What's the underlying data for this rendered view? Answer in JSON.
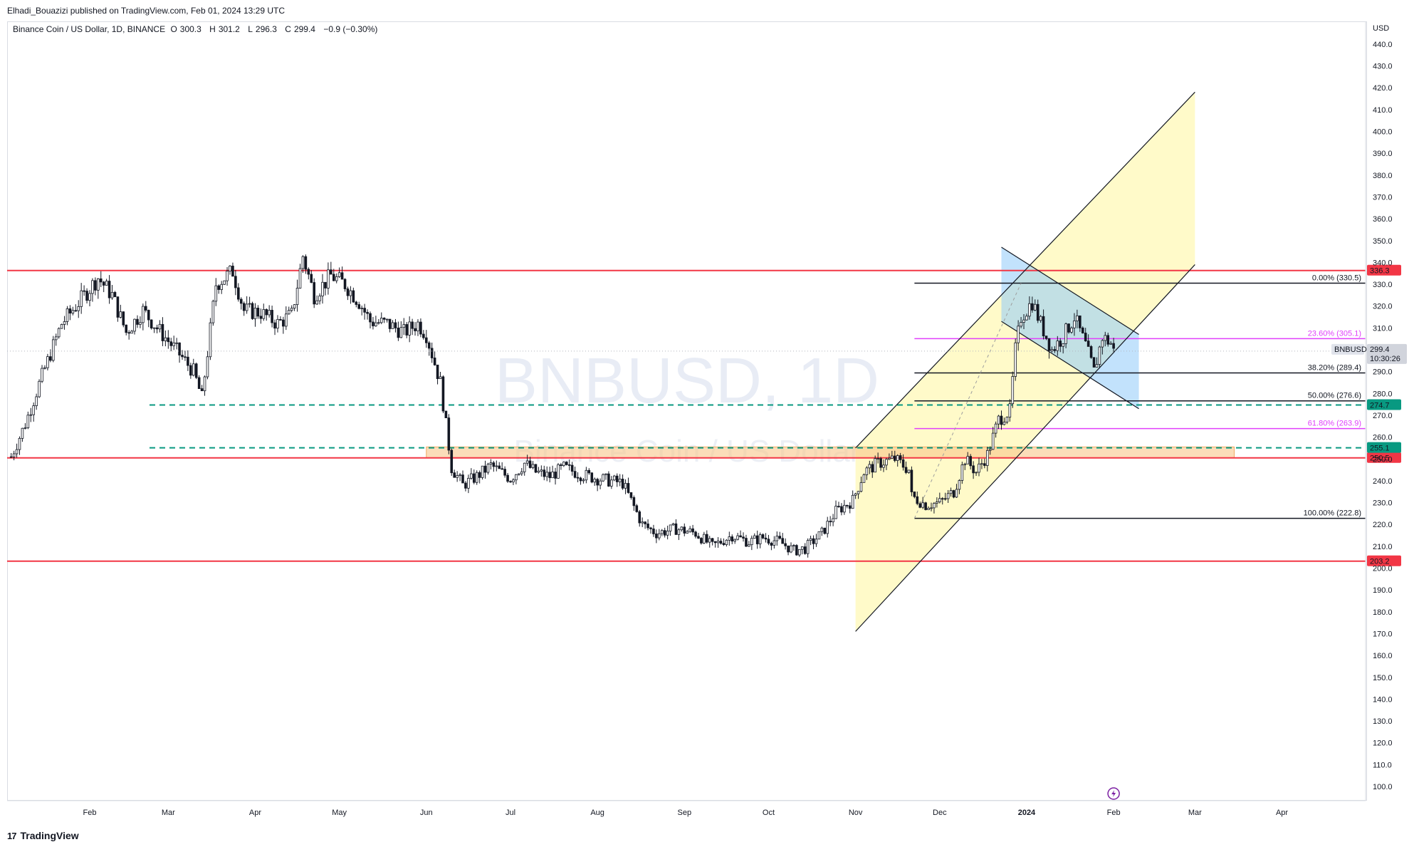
{
  "publisher": "Elhadi_Bouazizi published on TradingView.com, Feb 01, 2024 13:29 UTC",
  "legend": {
    "symbol": "Binance Coin / US Dollar, 1D, BINANCE",
    "o_label": "O",
    "o": "300.3",
    "h_label": "H",
    "h": "301.2",
    "l_label": "L",
    "l": "296.3",
    "c_label": "C",
    "c": "299.4",
    "change": "−0.9 (−0.30%)"
  },
  "currency": "USD",
  "watermark": {
    "ticker": "BNBUSD, 1D",
    "name": "Binance Coin / US Dollar"
  },
  "footer": {
    "brand": "TradingView",
    "logo_glyph": "17"
  },
  "last_price": {
    "symbol": "BNBUSD",
    "price": "299.4",
    "countdown": "10:30:26"
  },
  "chart_data": {
    "type": "candlestick",
    "ylim": [
      95,
      448
    ],
    "y_ticks": [
      "100.0",
      "110.0",
      "120.0",
      "130.0",
      "140.0",
      "150.0",
      "160.0",
      "170.0",
      "180.0",
      "190.0",
      "200.0",
      "210.0",
      "220.0",
      "230.0",
      "240.0",
      "250.0",
      "260.0",
      "270.0",
      "280.0",
      "290.0",
      "300.0",
      "310.0",
      "320.0",
      "330.0",
      "340.0",
      "350.0",
      "360.0",
      "370.0",
      "380.0",
      "390.0",
      "400.0",
      "410.0",
      "420.0",
      "430.0",
      "440.0"
    ],
    "x_ticks": [
      {
        "label": "Feb",
        "date": "2023-02-01"
      },
      {
        "label": "Mar",
        "date": "2023-03-01"
      },
      {
        "label": "Apr",
        "date": "2023-04-01"
      },
      {
        "label": "May",
        "date": "2023-05-01"
      },
      {
        "label": "Jun",
        "date": "2023-06-01"
      },
      {
        "label": "Jul",
        "date": "2023-07-01"
      },
      {
        "label": "Aug",
        "date": "2023-08-01"
      },
      {
        "label": "Sep",
        "date": "2023-09-01"
      },
      {
        "label": "Oct",
        "date": "2023-10-01"
      },
      {
        "label": "Nov",
        "date": "2023-11-01"
      },
      {
        "label": "Dec",
        "date": "2023-12-01"
      },
      {
        "label": "2024",
        "date": "2024-01-01"
      },
      {
        "label": "Feb",
        "date": "2024-02-01"
      },
      {
        "label": "Mar",
        "date": "2024-03-01"
      },
      {
        "label": "Apr",
        "date": "2024-04-01"
      }
    ],
    "price_path": [
      [
        "2023-01-04",
        251
      ],
      [
        "2023-01-09",
        266
      ],
      [
        "2023-01-15",
        288
      ],
      [
        "2023-01-22",
        312
      ],
      [
        "2023-01-27",
        320
      ],
      [
        "2023-02-04",
        333
      ],
      [
        "2023-02-09",
        325
      ],
      [
        "2023-02-14",
        308
      ],
      [
        "2023-02-20",
        318
      ],
      [
        "2023-02-25",
        310
      ],
      [
        "2023-03-05",
        298
      ],
      [
        "2023-03-10",
        290
      ],
      [
        "2023-03-13",
        278
      ],
      [
        "2023-03-18",
        330
      ],
      [
        "2023-03-24",
        336
      ],
      [
        "2023-03-28",
        318
      ],
      [
        "2023-04-03",
        317
      ],
      [
        "2023-04-09",
        312
      ],
      [
        "2023-04-14",
        316
      ],
      [
        "2023-04-18",
        343
      ],
      [
        "2023-04-22",
        325
      ],
      [
        "2023-04-28",
        334
      ],
      [
        "2023-05-03",
        330
      ],
      [
        "2023-05-08",
        322
      ],
      [
        "2023-05-12",
        313
      ],
      [
        "2023-05-18",
        312
      ],
      [
        "2023-05-24",
        308
      ],
      [
        "2023-05-29",
        312
      ],
      [
        "2023-06-01",
        307
      ],
      [
        "2023-06-06",
        285
      ],
      [
        "2023-06-10",
        246
      ],
      [
        "2023-06-14",
        238
      ],
      [
        "2023-06-19",
        242
      ],
      [
        "2023-06-24",
        247
      ],
      [
        "2023-07-01",
        241
      ],
      [
        "2023-07-06",
        248
      ],
      [
        "2023-07-10",
        244
      ],
      [
        "2023-07-15",
        242
      ],
      [
        "2023-07-20",
        246
      ],
      [
        "2023-07-26",
        243
      ],
      [
        "2023-08-01",
        241
      ],
      [
        "2023-08-10",
        239
      ],
      [
        "2023-08-17",
        220
      ],
      [
        "2023-08-22",
        216
      ],
      [
        "2023-08-29",
        218
      ],
      [
        "2023-09-05",
        216
      ],
      [
        "2023-09-11",
        210
      ],
      [
        "2023-09-18",
        215
      ],
      [
        "2023-09-24",
        212
      ],
      [
        "2023-09-29",
        214
      ],
      [
        "2023-10-05",
        212
      ],
      [
        "2023-10-10",
        208
      ],
      [
        "2023-10-14",
        209
      ],
      [
        "2023-10-20",
        216
      ],
      [
        "2023-10-25",
        226
      ],
      [
        "2023-10-31",
        231
      ],
      [
        "2023-11-04",
        244
      ],
      [
        "2023-11-09",
        248
      ],
      [
        "2023-11-15",
        250
      ],
      [
        "2023-11-20",
        245
      ],
      [
        "2023-11-21",
        233
      ],
      [
        "2023-11-26",
        229
      ],
      [
        "2023-12-01",
        230
      ],
      [
        "2023-12-06",
        235
      ],
      [
        "2023-12-10",
        250
      ],
      [
        "2023-12-14",
        244
      ],
      [
        "2023-12-18",
        252
      ],
      [
        "2023-12-22",
        268
      ],
      [
        "2023-12-26",
        272
      ],
      [
        "2023-12-28",
        300
      ],
      [
        "2023-12-30",
        315
      ],
      [
        "2024-01-03",
        322
      ],
      [
        "2024-01-06",
        312
      ],
      [
        "2024-01-10",
        300
      ],
      [
        "2024-01-14",
        306
      ],
      [
        "2024-01-18",
        315
      ],
      [
        "2024-01-22",
        302
      ],
      [
        "2024-01-25",
        290
      ],
      [
        "2024-01-28",
        306
      ],
      [
        "2024-01-31",
        303
      ],
      [
        "2024-02-01",
        299.4
      ]
    ],
    "horizontal_lines": [
      {
        "value": 336.3,
        "label": "336.3",
        "color": "#f23645",
        "style": "solid"
      },
      {
        "value": 250.5,
        "label": "250.5",
        "color": "#f23645",
        "style": "solid"
      },
      {
        "value": 203.2,
        "label": "203.2",
        "color": "#f23645",
        "style": "solid"
      },
      {
        "value": 274.7,
        "label": "274.7",
        "color": "#089981",
        "style": "dashed"
      },
      {
        "value": 255.1,
        "label": "255.1",
        "color": "#089981",
        "style": "dashed"
      }
    ],
    "support_zone": {
      "from": 250.5,
      "to": 255.5,
      "start": "2023-06-01",
      "end": "2024-03-15"
    },
    "fibonacci": {
      "start": "2023-11-22",
      "end": "2024-03-15",
      "levels": [
        {
          "label": "0.00% (330.5)",
          "value": 330.5,
          "color": "#131722"
        },
        {
          "label": "23.60% (305.1)",
          "value": 305.1,
          "color": "#e040fb"
        },
        {
          "label": "38.20% (289.4)",
          "value": 289.4,
          "color": "#131722"
        },
        {
          "label": "50.00% (276.6)",
          "value": 276.6,
          "color": "#131722"
        },
        {
          "label": "61.80% (263.9)",
          "value": 263.9,
          "color": "#e040fb"
        },
        {
          "label": "100.00% (222.8)",
          "value": 222.8,
          "color": "#131722"
        }
      ]
    },
    "channel_yellow": {
      "upper": [
        [
          "2023-11-01",
          255
        ],
        [
          "2024-03-01",
          418
        ]
      ],
      "lower": [
        [
          "2023-11-01",
          171
        ],
        [
          "2024-03-01",
          339
        ]
      ]
    },
    "channel_blue": {
      "upper": [
        [
          "2023-12-23",
          347
        ],
        [
          "2024-02-10",
          307
        ]
      ],
      "lower": [
        [
          "2023-12-23",
          313
        ],
        [
          "2024-02-10",
          273
        ]
      ]
    },
    "colors": {
      "up": "#131722",
      "down": "#131722",
      "red_line": "#f23645",
      "green_line": "#089981",
      "zone": "#f9c78a",
      "yellow": "#fff59d",
      "blue": "#90caf9"
    }
  }
}
